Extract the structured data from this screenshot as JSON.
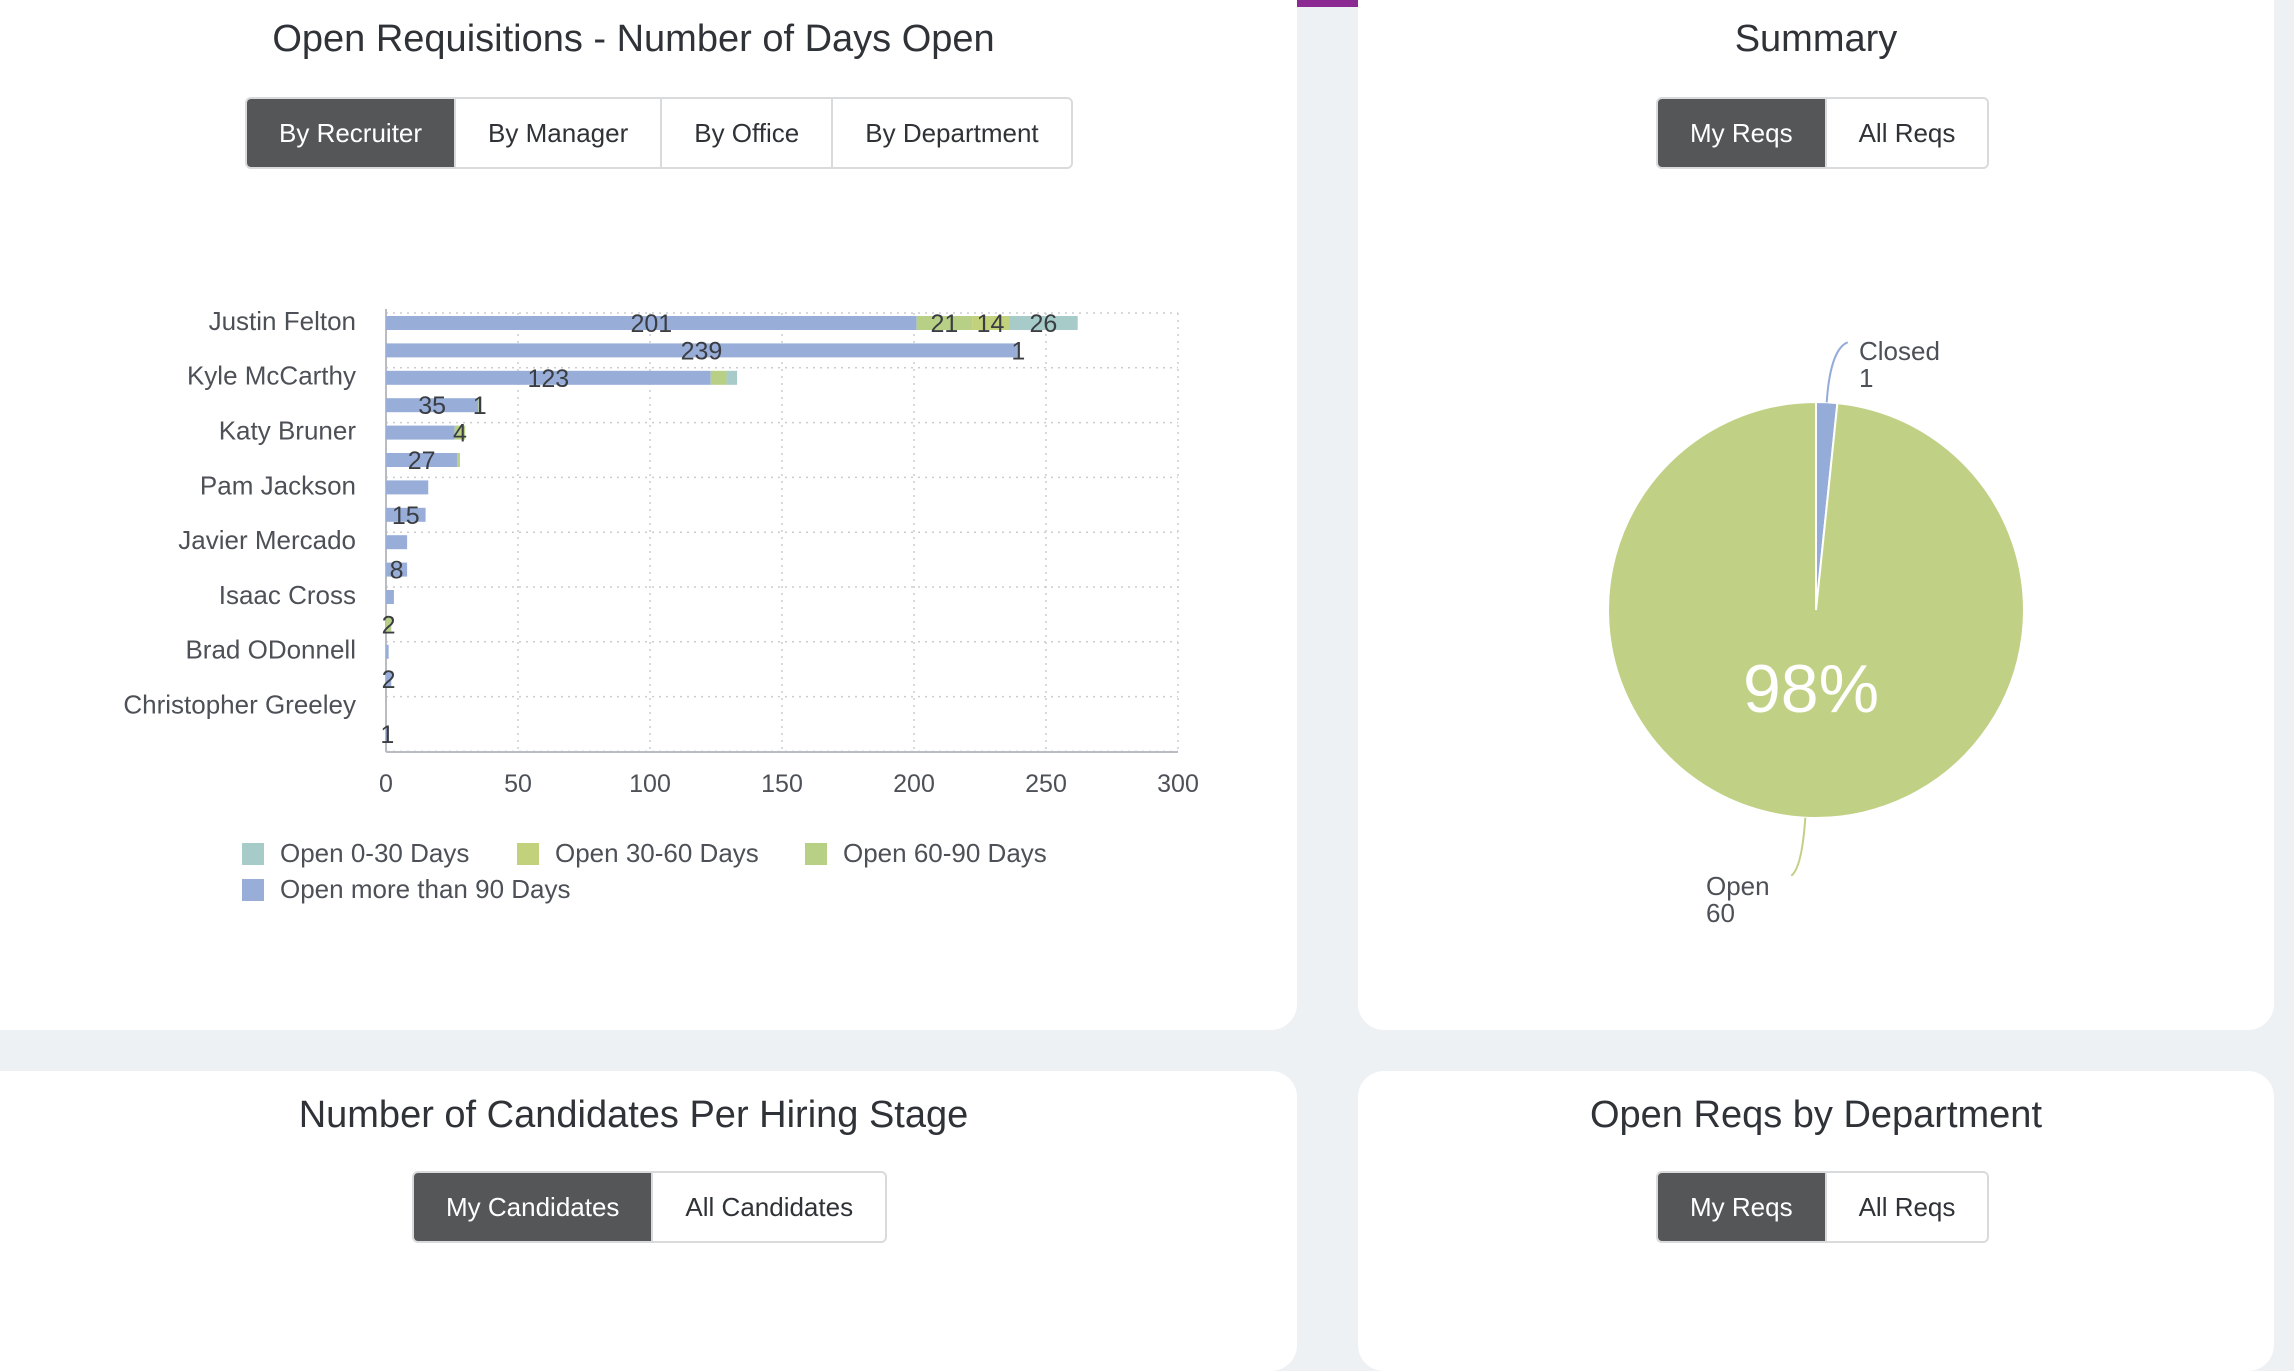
{
  "colors": {
    "accent": "#8c2a94",
    "open_0_30": "#a6cbc8",
    "open_30_60": "#c2d27c",
    "open_60_90": "#b7d086",
    "open_90_plus": "#98aed8",
    "pie_open": "#c0d186",
    "pie_closed": "#95acd8",
    "button_active": "#555658"
  },
  "req_card": {
    "title": "Open Requisitions - Number of Days Open",
    "tabs": [
      "By Recruiter",
      "By Manager",
      "By Office",
      "By Department"
    ],
    "active_tab": "By Recruiter"
  },
  "summary_card": {
    "title": "Summary",
    "tabs": [
      "My Reqs",
      "All Reqs"
    ],
    "active_tab": "My Reqs"
  },
  "candidates_card": {
    "title": "Number of Candidates Per Hiring Stage",
    "tabs": [
      "My Candidates",
      "All Candidates"
    ],
    "active_tab": "My Candidates"
  },
  "dept_card": {
    "title": "Open Reqs by Department",
    "tabs": [
      "My Reqs",
      "All Reqs"
    ],
    "active_tab": "My Reqs"
  },
  "chart_data": [
    {
      "type": "bar",
      "orientation": "horizontal",
      "stacked": true,
      "title": "Open Requisitions - Number of Days Open",
      "recruiters": [
        "Justin Felton",
        "Kyle McCarthy",
        "Katy Bruner",
        "Pam Jackson",
        "Javier Mercado",
        "Isaac Cross",
        "Brad ODonnell",
        "Christopher Greeley"
      ],
      "rows": [
        {
          "recruiter": "Justin Felton",
          "segments": [
            {
              "series": "Open more than 90 Days",
              "value": 201,
              "label": "201"
            },
            {
              "series": "Open 60-90 Days",
              "value": 21,
              "label": "21"
            },
            {
              "series": "Open 30-60 Days",
              "value": 14,
              "label": "14"
            },
            {
              "series": "Open 0-30 Days",
              "value": 26,
              "label": "26"
            }
          ]
        },
        {
          "recruiter": "",
          "segments": [
            {
              "series": "Open more than 90 Days",
              "value": 239,
              "label": "239"
            },
            {
              "series": "Open 60-90 Days",
              "value": 1,
              "label": "1"
            }
          ]
        },
        {
          "recruiter": "Kyle McCarthy",
          "segments": [
            {
              "series": "Open more than 90 Days",
              "value": 123,
              "label": "123"
            },
            {
              "series": "Open 60-90 Days",
              "value": 6,
              "label": ""
            },
            {
              "series": "Open 0-30 Days",
              "value": 4,
              "label": ""
            }
          ]
        },
        {
          "recruiter": "",
          "segments": [
            {
              "series": "Open more than 90 Days",
              "value": 35,
              "label": "35"
            },
            {
              "series": "Open 60-90 Days",
              "value": 1,
              "label": "1"
            }
          ]
        },
        {
          "recruiter": "Katy Bruner",
          "segments": [
            {
              "series": "Open more than 90 Days",
              "value": 26,
              "label": ""
            },
            {
              "series": "Open 60-90 Days",
              "value": 4,
              "label": "4"
            }
          ]
        },
        {
          "recruiter": "",
          "segments": [
            {
              "series": "Open more than 90 Days",
              "value": 27,
              "label": "27"
            },
            {
              "series": "Open 60-90 Days",
              "value": 1,
              "label": ""
            }
          ]
        },
        {
          "recruiter": "Pam Jackson",
          "segments": [
            {
              "series": "Open more than 90 Days",
              "value": 16,
              "label": ""
            }
          ]
        },
        {
          "recruiter": "",
          "segments": [
            {
              "series": "Open more than 90 Days",
              "value": 15,
              "label": "15"
            }
          ]
        },
        {
          "recruiter": "Javier Mercado",
          "segments": [
            {
              "series": "Open more than 90 Days",
              "value": 8,
              "label": ""
            }
          ]
        },
        {
          "recruiter": "",
          "segments": [
            {
              "series": "Open more than 90 Days",
              "value": 8,
              "label": "8"
            }
          ]
        },
        {
          "recruiter": "Isaac Cross",
          "segments": [
            {
              "series": "Open more than 90 Days",
              "value": 3,
              "label": ""
            }
          ]
        },
        {
          "recruiter": "",
          "segments": [
            {
              "series": "Open 60-90 Days",
              "value": 2,
              "label": "2"
            }
          ]
        },
        {
          "recruiter": "Brad ODonnell",
          "segments": [
            {
              "series": "Open more than 90 Days",
              "value": 1,
              "label": ""
            }
          ]
        },
        {
          "recruiter": "",
          "segments": [
            {
              "series": "Open more than 90 Days",
              "value": 2,
              "label": "2"
            }
          ]
        },
        {
          "recruiter": "Christopher Greeley",
          "segments": []
        },
        {
          "recruiter": "",
          "segments": [
            {
              "series": "Open more than 90 Days",
              "value": 1,
              "label": "1"
            }
          ]
        }
      ],
      "xlim": [
        0,
        300
      ],
      "xticks": [
        0,
        50,
        100,
        150,
        200,
        250,
        300
      ],
      "grid": true,
      "legend": [
        "Open 0-30 Days",
        "Open 30-60 Days",
        "Open 60-90 Days",
        "Open more than 90 Days"
      ],
      "legend_placement": "bottom-left"
    },
    {
      "type": "pie",
      "title": "Summary",
      "slices": [
        {
          "label": "Closed",
          "value": 1
        },
        {
          "label": "Open",
          "value": 60
        }
      ],
      "center_label": "98%"
    }
  ]
}
